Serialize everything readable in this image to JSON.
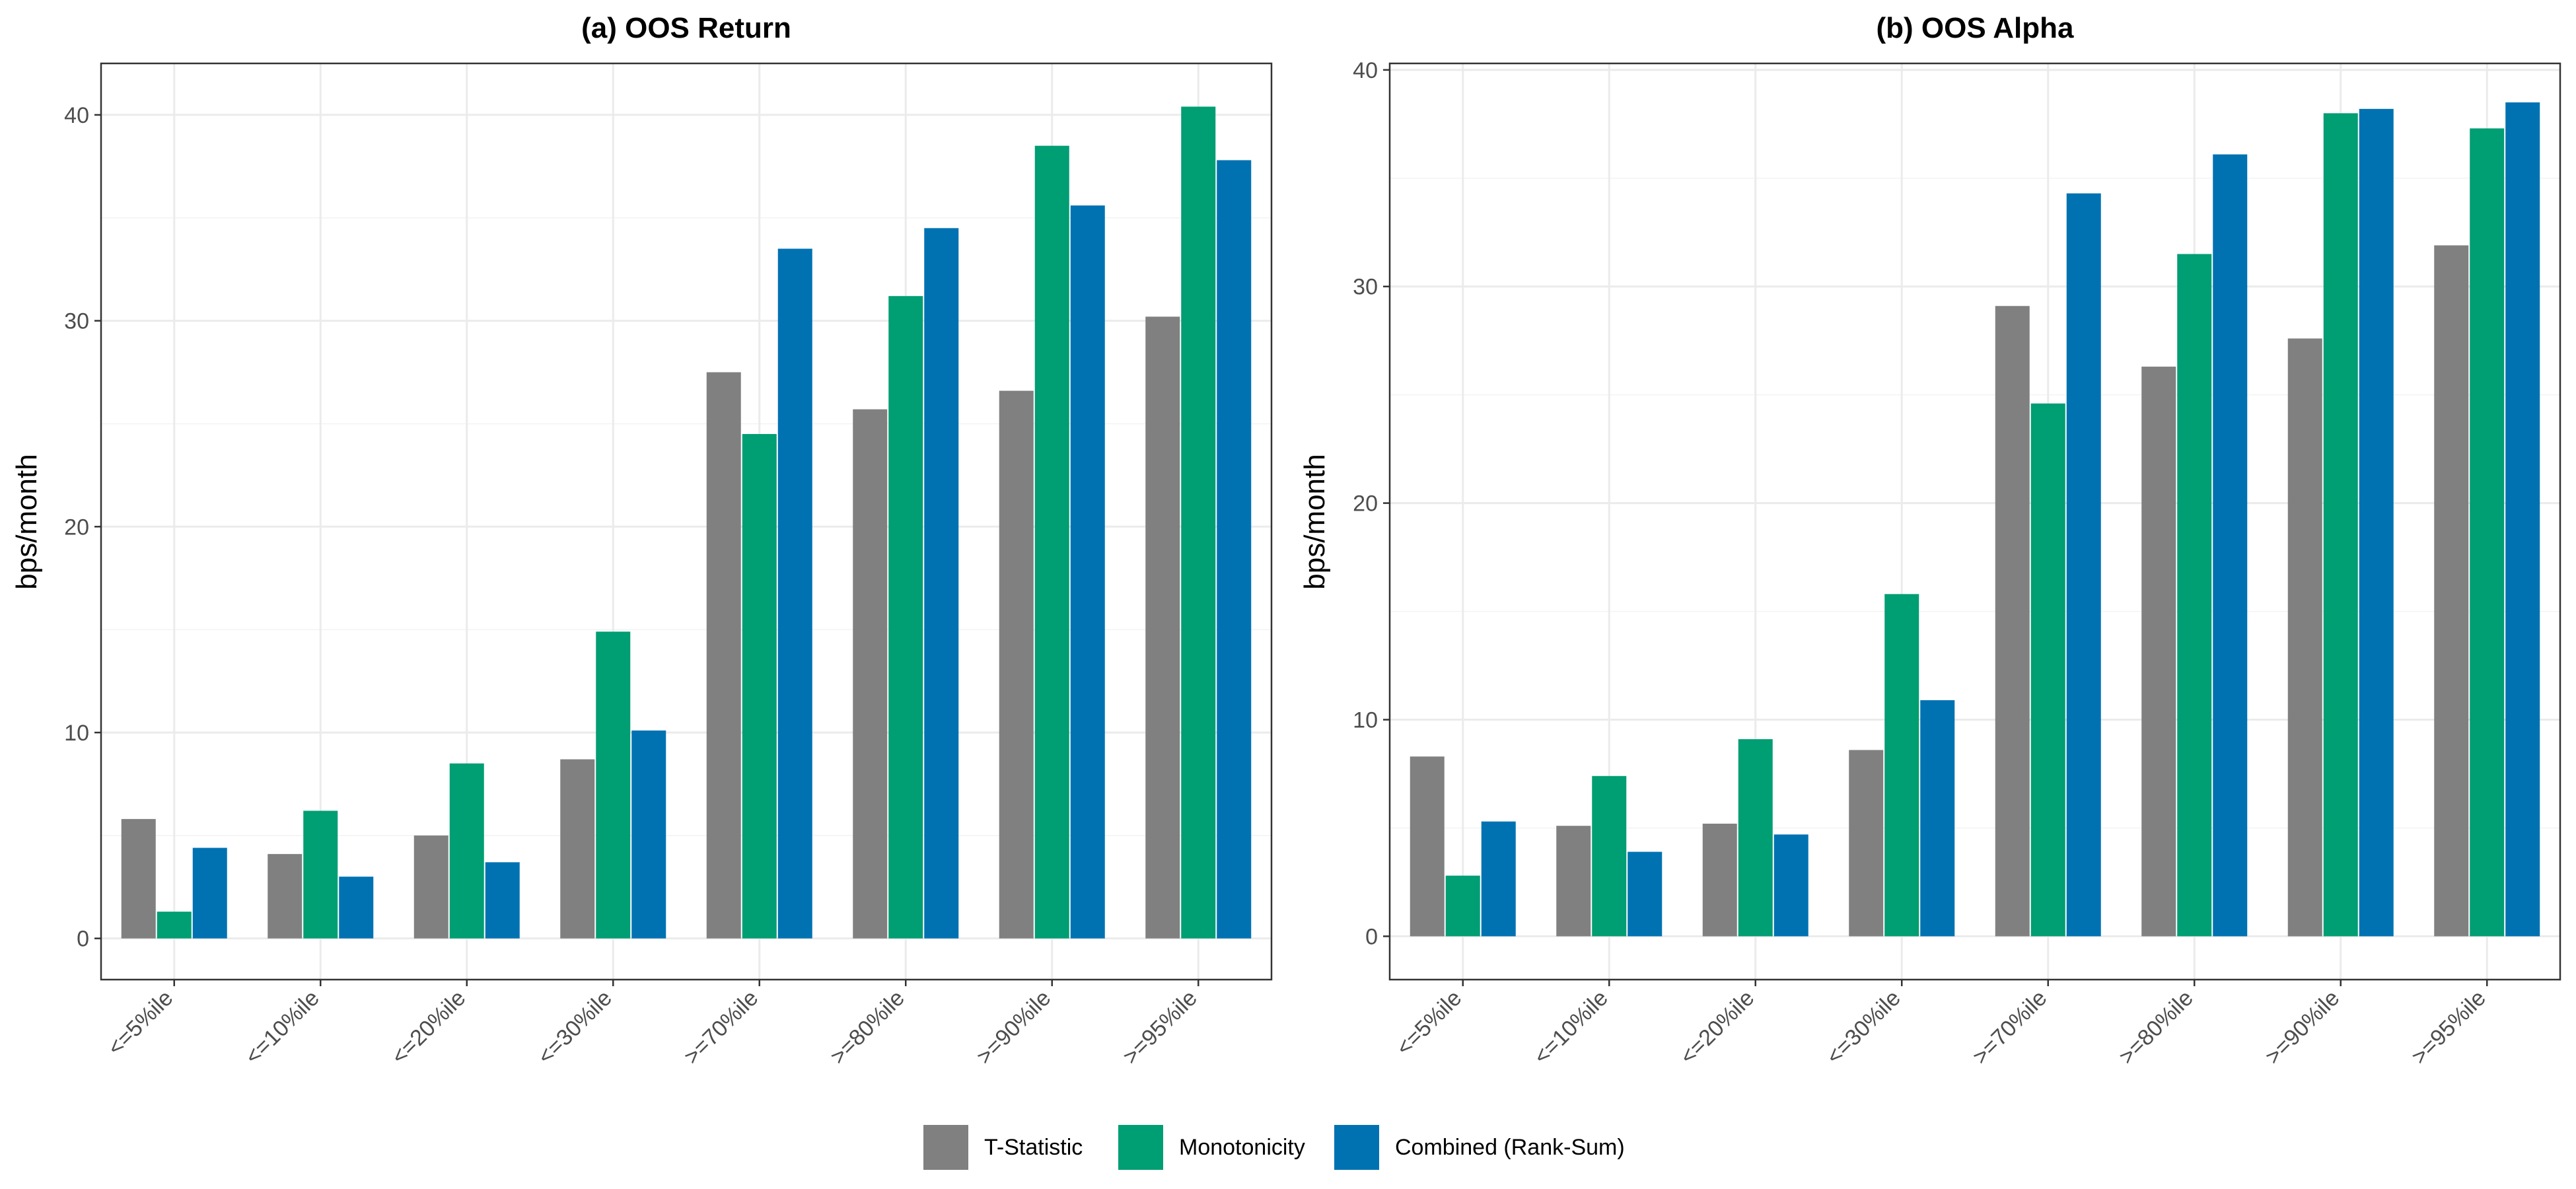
{
  "chart_data": [
    {
      "type": "bar",
      "title": "(a) OOS Return",
      "xlabel": "",
      "ylabel": "bps/month",
      "ylim": [
        -2,
        42.5
      ],
      "yticks": [
        0,
        10,
        20,
        30,
        40
      ],
      "grid": true,
      "categories": [
        "<=5%ile",
        "<=10%ile",
        "<=20%ile",
        "<=30%ile",
        ">=70%ile",
        ">=80%ile",
        ">=90%ile",
        ">=95%ile"
      ],
      "series": [
        {
          "name": "T-Statistic",
          "color": "#808080",
          "values": [
            5.8,
            4.1,
            5.0,
            8.7,
            27.5,
            25.7,
            26.6,
            30.2
          ]
        },
        {
          "name": "Monotonicity",
          "color": "#009e73",
          "values": [
            1.3,
            6.2,
            8.5,
            14.9,
            24.5,
            31.2,
            38.5,
            40.4
          ]
        },
        {
          "name": "Combined (Rank-Sum)",
          "color": "#0072b2",
          "values": [
            4.4,
            3.0,
            3.7,
            10.1,
            33.5,
            34.5,
            35.6,
            37.8
          ]
        }
      ]
    },
    {
      "type": "bar",
      "title": "(b) OOS Alpha",
      "xlabel": "",
      "ylabel": "bps/month",
      "ylim": [
        -2,
        40.3
      ],
      "yticks": [
        0,
        10,
        20,
        30,
        40
      ],
      "grid": true,
      "categories": [
        "<=5%ile",
        "<=10%ile",
        "<=20%ile",
        "<=30%ile",
        ">=70%ile",
        ">=80%ile",
        ">=90%ile",
        ">=95%ile"
      ],
      "series": [
        {
          "name": "T-Statistic",
          "color": "#808080",
          "values": [
            8.3,
            5.1,
            5.2,
            8.6,
            29.1,
            26.3,
            27.6,
            31.9
          ]
        },
        {
          "name": "Monotonicity",
          "color": "#009e73",
          "values": [
            2.8,
            7.4,
            9.1,
            15.8,
            24.6,
            31.5,
            38.0,
            37.3
          ]
        },
        {
          "name": "Combined (Rank-Sum)",
          "color": "#0072b2",
          "values": [
            5.3,
            3.9,
            4.7,
            10.9,
            34.3,
            36.1,
            38.2,
            38.5
          ]
        }
      ]
    }
  ],
  "legend": {
    "position": "bottom",
    "items": [
      {
        "name": "T-Statistic",
        "color": "#808080"
      },
      {
        "name": "Monotonicity",
        "color": "#009e73"
      },
      {
        "name": "Combined (Rank-Sum)",
        "color": "#0072b2"
      }
    ]
  }
}
